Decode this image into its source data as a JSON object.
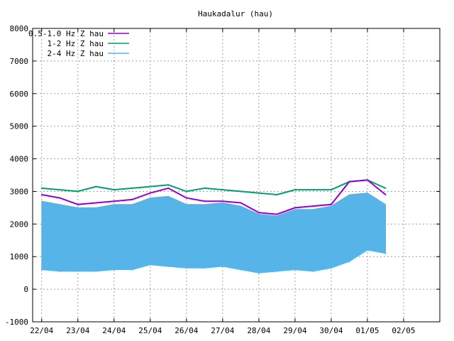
{
  "chart_data": {
    "type": "line",
    "title": "Haukadalur (hau)",
    "xlabel": "",
    "ylabel": "",
    "ylim": [
      -1000,
      8000
    ],
    "yticks": [
      -1000,
      0,
      1000,
      2000,
      3000,
      4000,
      5000,
      6000,
      7000,
      8000
    ],
    "xlim": [
      "2024-04-21 18:00",
      "2024-05-03 00:00"
    ],
    "xticks": [
      "22/04",
      "23/04",
      "24/04",
      "25/04",
      "26/04",
      "27/04",
      "28/04",
      "29/04",
      "30/04",
      "01/05",
      "02/05"
    ],
    "grid": true,
    "legend_position": "top-left",
    "series": [
      {
        "name": "0.5-1.0 Hz Z hau",
        "color": "#9400d3",
        "x": [
          "22/04 00:00",
          "22/04 12:00",
          "23/04 00:00",
          "23/04 12:00",
          "24/04 00:00",
          "24/04 12:00",
          "25/04 00:00",
          "25/04 12:00",
          "26/04 00:00",
          "26/04 12:00",
          "27/04 00:00",
          "27/04 12:00",
          "28/04 00:00",
          "28/04 12:00",
          "29/04 00:00",
          "29/04 12:00",
          "30/04 00:00",
          "30/04 12:00",
          "01/05 00:00",
          "01/05 12:00"
        ],
        "values": [
          2900,
          2800,
          2600,
          2650,
          2700,
          2750,
          2950,
          3100,
          2800,
          2700,
          2700,
          2650,
          2350,
          2300,
          2500,
          2550,
          2600,
          3300,
          3350,
          2900
        ]
      },
      {
        "name": "1-2 Hz Z hau",
        "color": "#009e73",
        "x": [
          "22/04 00:00",
          "22/04 12:00",
          "23/04 00:00",
          "23/04 12:00",
          "24/04 00:00",
          "24/04 12:00",
          "25/04 00:00",
          "25/04 12:00",
          "26/04 00:00",
          "26/04 12:00",
          "27/04 00:00",
          "27/04 12:00",
          "28/04 00:00",
          "28/04 12:00",
          "29/04 00:00",
          "29/04 12:00",
          "30/04 00:00",
          "30/04 12:00",
          "01/05 00:00",
          "01/05 12:00"
        ],
        "values": [
          3100,
          3050,
          3000,
          3150,
          3050,
          3100,
          3150,
          3200,
          3000,
          3100,
          3050,
          3000,
          2950,
          2900,
          3050,
          3050,
          3050,
          3300,
          3350,
          3100
        ]
      },
      {
        "name": "2-4 Hz Z hau",
        "color": "#56b4e9",
        "x": [
          "22/04 00:00",
          "22/04 12:00",
          "23/04 00:00",
          "23/04 12:00",
          "24/04 00:00",
          "24/04 12:00",
          "25/04 00:00",
          "25/04 12:00",
          "26/04 00:00",
          "26/04 12:00",
          "27/04 00:00",
          "27/04 12:00",
          "28/04 00:00",
          "28/04 12:00",
          "29/04 00:00",
          "29/04 12:00",
          "30/04 00:00",
          "30/04 12:00",
          "01/05 00:00",
          "01/05 12:00"
        ],
        "values": [
          600,
          550,
          550,
          550,
          600,
          600,
          750,
          700,
          650,
          650,
          700,
          600,
          500,
          550,
          600,
          550,
          650,
          850,
          1200,
          1100
        ],
        "upper": [
          2700,
          2600,
          2500,
          2500,
          2600,
          2600,
          2800,
          2850,
          2600,
          2600,
          2650,
          2550,
          2300,
          2250,
          2450,
          2450,
          2550,
          2900,
          2950,
          2600
        ]
      }
    ]
  }
}
